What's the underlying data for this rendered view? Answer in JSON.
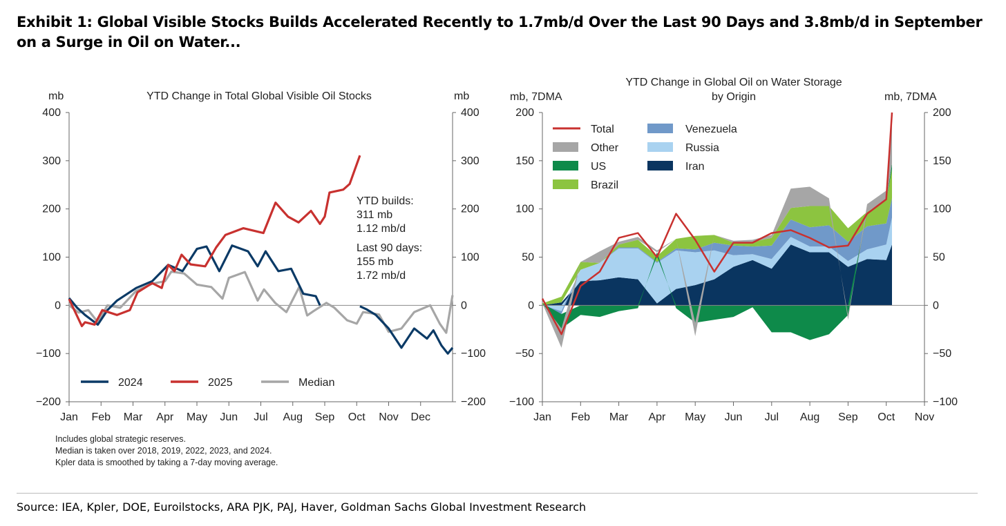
{
  "title": "Exhibit 1: Global Visible Stocks Builds Accelerated Recently to 1.7mb/d Over the Last 90 Days and 3.8mb/d in September on a Surge in Oil on Water...",
  "notes": [
    "Includes global strategic reserves.",
    "Median is taken over 2018, 2019, 2022, 2023, and 2024.",
    "Kpler data is smoothed by taking a 7-day moving average."
  ],
  "source": "Source: IEA, Kpler, DOE, Euroilstocks, ARA PJK, PAJ, Haver, Goldman Sachs Global Investment Research",
  "chart_data": [
    {
      "type": "line",
      "title": "YTD Change in Total Global Visible Oil Stocks",
      "ylabel_left": "mb",
      "ylabel_right": "mb",
      "ylim": [
        -200,
        400
      ],
      "yticks": [
        400,
        300,
        200,
        100,
        0,
        -100,
        -200
      ],
      "xlabel": "",
      "categories": [
        "Jan",
        "Feb",
        "Mar",
        "Apr",
        "May",
        "Jun",
        "Jul",
        "Aug",
        "Sep",
        "Oct",
        "Nov",
        "Dec"
      ],
      "x_unit": "months since Jan 1",
      "annotation": [
        "YTD builds:",
        "311 mb",
        "1.12 mb/d",
        "Last 90 days:",
        "155 mb",
        "1.72 mb/d"
      ],
      "legend": "bottom-left",
      "series": [
        {
          "name": "2024",
          "color": "#0b3a66",
          "points": [
            [
              0,
              15
            ],
            [
              0.25,
              -5
            ],
            [
              0.5,
              -20
            ],
            [
              0.9,
              -40
            ],
            [
              1.2,
              -10
            ],
            [
              1.5,
              10
            ],
            [
              2.1,
              36
            ],
            [
              2.6,
              50
            ],
            [
              3.1,
              84
            ],
            [
              3.55,
              71
            ],
            [
              4.0,
              117
            ],
            [
              4.3,
              122
            ],
            [
              4.7,
              71
            ],
            [
              5.1,
              124
            ],
            [
              5.6,
              112
            ],
            [
              5.9,
              81
            ],
            [
              6.15,
              112
            ],
            [
              6.55,
              71
            ],
            [
              6.95,
              76
            ],
            [
              7.33,
              24
            ],
            [
              7.72,
              19
            ],
            [
              7.85,
              0
            ],
            [
              null,
              null
            ],
            [
              9.1,
              -2
            ],
            [
              9.3,
              -8
            ],
            [
              9.6,
              -20
            ],
            [
              10.0,
              -48
            ],
            [
              10.4,
              -88
            ],
            [
              10.8,
              -48
            ],
            [
              11.2,
              -69
            ],
            [
              11.4,
              -52
            ],
            [
              11.65,
              -83
            ],
            [
              11.85,
              -100
            ],
            [
              12.0,
              -88
            ]
          ]
        },
        {
          "name": "2025",
          "color": "#c8312f",
          "points": [
            [
              0,
              13
            ],
            [
              0.4,
              -43
            ],
            [
              0.5,
              -35
            ],
            [
              0.8,
              -40
            ],
            [
              1.04,
              -10
            ],
            [
              1.5,
              -20
            ],
            [
              1.9,
              -10
            ],
            [
              2.14,
              27
            ],
            [
              2.6,
              46
            ],
            [
              2.9,
              36
            ],
            [
              3.1,
              84
            ],
            [
              3.3,
              71
            ],
            [
              3.52,
              105
            ],
            [
              3.8,
              85
            ],
            [
              4.26,
              81
            ],
            [
              4.6,
              120
            ],
            [
              4.89,
              146
            ],
            [
              5.45,
              160
            ],
            [
              6.08,
              150
            ],
            [
              6.46,
              213
            ],
            [
              6.85,
              184
            ],
            [
              7.18,
              172
            ],
            [
              7.57,
              196
            ],
            [
              7.85,
              169
            ],
            [
              8.0,
              184
            ],
            [
              8.15,
              234
            ],
            [
              8.58,
              240
            ],
            [
              8.78,
              252
            ],
            [
              9.1,
              311
            ]
          ]
        },
        {
          "name": "Median",
          "color": "#a6a6a6",
          "points": [
            [
              0,
              0
            ],
            [
              0.3,
              -15
            ],
            [
              0.6,
              -10
            ],
            [
              0.9,
              -35
            ],
            [
              1.2,
              0
            ],
            [
              1.6,
              -5
            ],
            [
              2.1,
              30
            ],
            [
              2.6,
              45
            ],
            [
              3.0,
              50
            ],
            [
              3.2,
              70
            ],
            [
              3.6,
              66
            ],
            [
              4.0,
              43
            ],
            [
              4.45,
              38
            ],
            [
              4.8,
              14
            ],
            [
              5.0,
              57
            ],
            [
              5.5,
              69
            ],
            [
              5.9,
              10
            ],
            [
              6.1,
              33
            ],
            [
              6.45,
              5
            ],
            [
              6.8,
              -14
            ],
            [
              7.2,
              38
            ],
            [
              7.45,
              -21
            ],
            [
              7.65,
              -12
            ],
            [
              8.05,
              5
            ],
            [
              8.3,
              -5
            ],
            [
              8.7,
              -31
            ],
            [
              9.0,
              -38
            ],
            [
              9.2,
              -14
            ],
            [
              9.7,
              -19
            ],
            [
              10.0,
              -55
            ],
            [
              10.4,
              -48
            ],
            [
              10.8,
              -14
            ],
            [
              11.3,
              0
            ],
            [
              11.6,
              -38
            ],
            [
              11.8,
              -57
            ],
            [
              12.0,
              21
            ]
          ]
        }
      ]
    },
    {
      "type": "area",
      "title": "YTD Change in Global Oil on Water Storage",
      "subtitle": "by Origin",
      "ylabel_left": "mb, 7DMA",
      "ylabel_right": "mb, 7DMA",
      "ylim": [
        -100,
        200
      ],
      "yticks": [
        200,
        150,
        100,
        50,
        0,
        -50,
        -100
      ],
      "categories": [
        "Jan",
        "Feb",
        "Mar",
        "Apr",
        "May",
        "Jun",
        "Jul",
        "Aug",
        "Sep",
        "Oct",
        "Nov"
      ],
      "x_unit": "months since Jan 1",
      "legend": "top-left",
      "x": [
        0,
        0.5,
        1,
        1.5,
        2,
        2.5,
        3,
        3.5,
        4,
        4.5,
        5,
        5.5,
        6,
        6.5,
        7,
        7.5,
        8,
        8.5,
        9,
        9.15
      ],
      "series": [
        {
          "name": "Iran",
          "color": "#0a3560",
          "values": [
            0,
            3,
            25,
            26,
            29,
            27,
            2,
            17,
            21,
            27,
            40,
            47,
            38,
            63,
            55,
            55,
            40,
            48,
            47,
            63
          ]
        },
        {
          "name": "Russia",
          "color": "#a9d2f0",
          "values": [
            0,
            -6,
            12,
            18,
            30,
            32,
            42,
            40,
            34,
            30,
            12,
            6,
            10,
            8,
            6,
            6,
            6,
            10,
            16,
            28
          ]
        },
        {
          "name": "Venezuela",
          "color": "#7099c9",
          "values": [
            0,
            -3,
            0,
            0,
            1,
            1,
            1,
            2,
            3,
            8,
            10,
            8,
            14,
            18,
            20,
            22,
            20,
            24,
            22,
            20
          ]
        },
        {
          "name": "Brazil",
          "color": "#8cc440",
          "values": [
            2,
            6,
            8,
            0,
            3,
            8,
            6,
            10,
            14,
            8,
            3,
            5,
            8,
            12,
            22,
            20,
            14,
            15,
            24,
            30
          ]
        },
        {
          "name": "US",
          "color": "#0e8a4a",
          "values": [
            0,
            -15,
            -10,
            -12,
            -6,
            -3,
            4,
            -3,
            -18,
            -15,
            -12,
            -2,
            -28,
            -28,
            -36,
            -30,
            -10,
            0,
            0,
            6
          ]
        },
        {
          "name": "Other",
          "color": "#a6a6a6",
          "values": [
            0,
            -20,
            0,
            12,
            3,
            3,
            2,
            0,
            -14,
            0,
            2,
            2,
            3,
            20,
            20,
            8,
            -5,
            8,
            10,
            50
          ]
        },
        {
          "name": "Total",
          "color": "#c8312f",
          "line": true,
          "values": [
            7,
            -30,
            20,
            35,
            70,
            75,
            50,
            95,
            68,
            35,
            65,
            65,
            75,
            78,
            70,
            60,
            62,
            95,
            110,
            200
          ]
        }
      ],
      "legend_order": [
        "Total",
        "Other",
        "US",
        "Brazil",
        "Venezuela",
        "Russia",
        "Iran"
      ]
    }
  ]
}
